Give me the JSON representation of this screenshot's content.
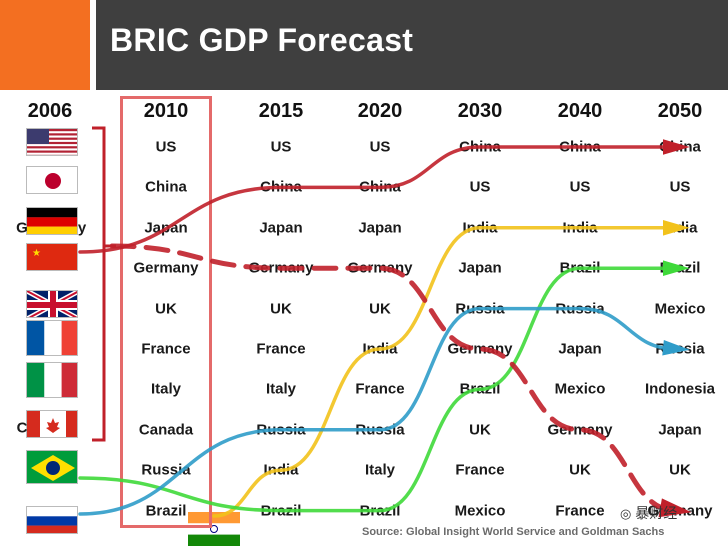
{
  "chart_data": {
    "type": "table",
    "title": "BRIC GDP Forecast",
    "columns": [
      "2006",
      "2010",
      "2015",
      "2020",
      "2030",
      "2040",
      "2050"
    ],
    "rankings": [
      {
        "year": "2010",
        "countries": [
          "US",
          "China",
          "Japan",
          "Germany",
          "UK",
          "France",
          "Italy",
          "Canada",
          "Russia",
          "Brazil"
        ]
      },
      {
        "year": "2015",
        "countries": [
          "US",
          "China",
          "Japan",
          "Germany",
          "UK",
          "France",
          "Italy",
          "Russia",
          "India",
          "Brazil"
        ]
      },
      {
        "year": "2020",
        "countries": [
          "US",
          "China",
          "Japan",
          "Germany",
          "UK",
          "India",
          "France",
          "Russia",
          "Italy",
          "Brazil"
        ]
      },
      {
        "year": "2030",
        "countries": [
          "China",
          "US",
          "India",
          "Japan",
          "Russia",
          "Germany",
          "Brazil",
          "UK",
          "France",
          "Mexico"
        ]
      },
      {
        "year": "2040",
        "countries": [
          "China",
          "US",
          "India",
          "Brazil",
          "Russia",
          "Japan",
          "Mexico",
          "Germany",
          "UK",
          "France"
        ]
      },
      {
        "year": "2050",
        "countries": [
          "China",
          "US",
          "India",
          "Brazil",
          "Mexico",
          "Russia",
          "Indonesia",
          "Japan",
          "UK",
          "Germany"
        ]
      }
    ],
    "flags_2006": [
      "us-flag",
      "japan-flag",
      "germany-flag",
      "china-flag",
      "uk-flag",
      "france-flag",
      "italy-flag",
      "canada-flag",
      "brazil-flag",
      "russia-flag",
      "india-flag"
    ],
    "partial_labels_2006": {
      "germany_row": "G",
      "germany_row_end": "y",
      "canada_row": "C"
    },
    "trajectories": [
      {
        "country": "China",
        "color": "#c0202a",
        "style": "solid",
        "ranks": [
          2,
          2,
          2,
          1,
          1,
          1
        ]
      },
      {
        "country": "India",
        "color": "#f2c21b",
        "style": "solid",
        "ranks": [
          11,
          9,
          6,
          3,
          3,
          3
        ]
      },
      {
        "country": "Brazil",
        "color": "#3fd93a",
        "style": "solid",
        "ranks": [
          10,
          10,
          10,
          7,
          4,
          4
        ]
      },
      {
        "country": "Russia",
        "color": "#2f9cc9",
        "style": "solid",
        "ranks": [
          9,
          8,
          8,
          5,
          5,
          6
        ]
      },
      {
        "country": "Germany",
        "color": "#c0202a",
        "style": "dashed",
        "ranks": [
          4,
          4,
          4,
          6,
          8,
          10
        ]
      }
    ],
    "source": "Source: Global Insight World Service and Goldman Sachs",
    "watermark": "暴财经"
  },
  "colors": {
    "header_bar": "#3f3f3f",
    "header_accent": "#f36f21",
    "highlight_box": "#e46a6a",
    "left_bracket": "#c0202a"
  }
}
